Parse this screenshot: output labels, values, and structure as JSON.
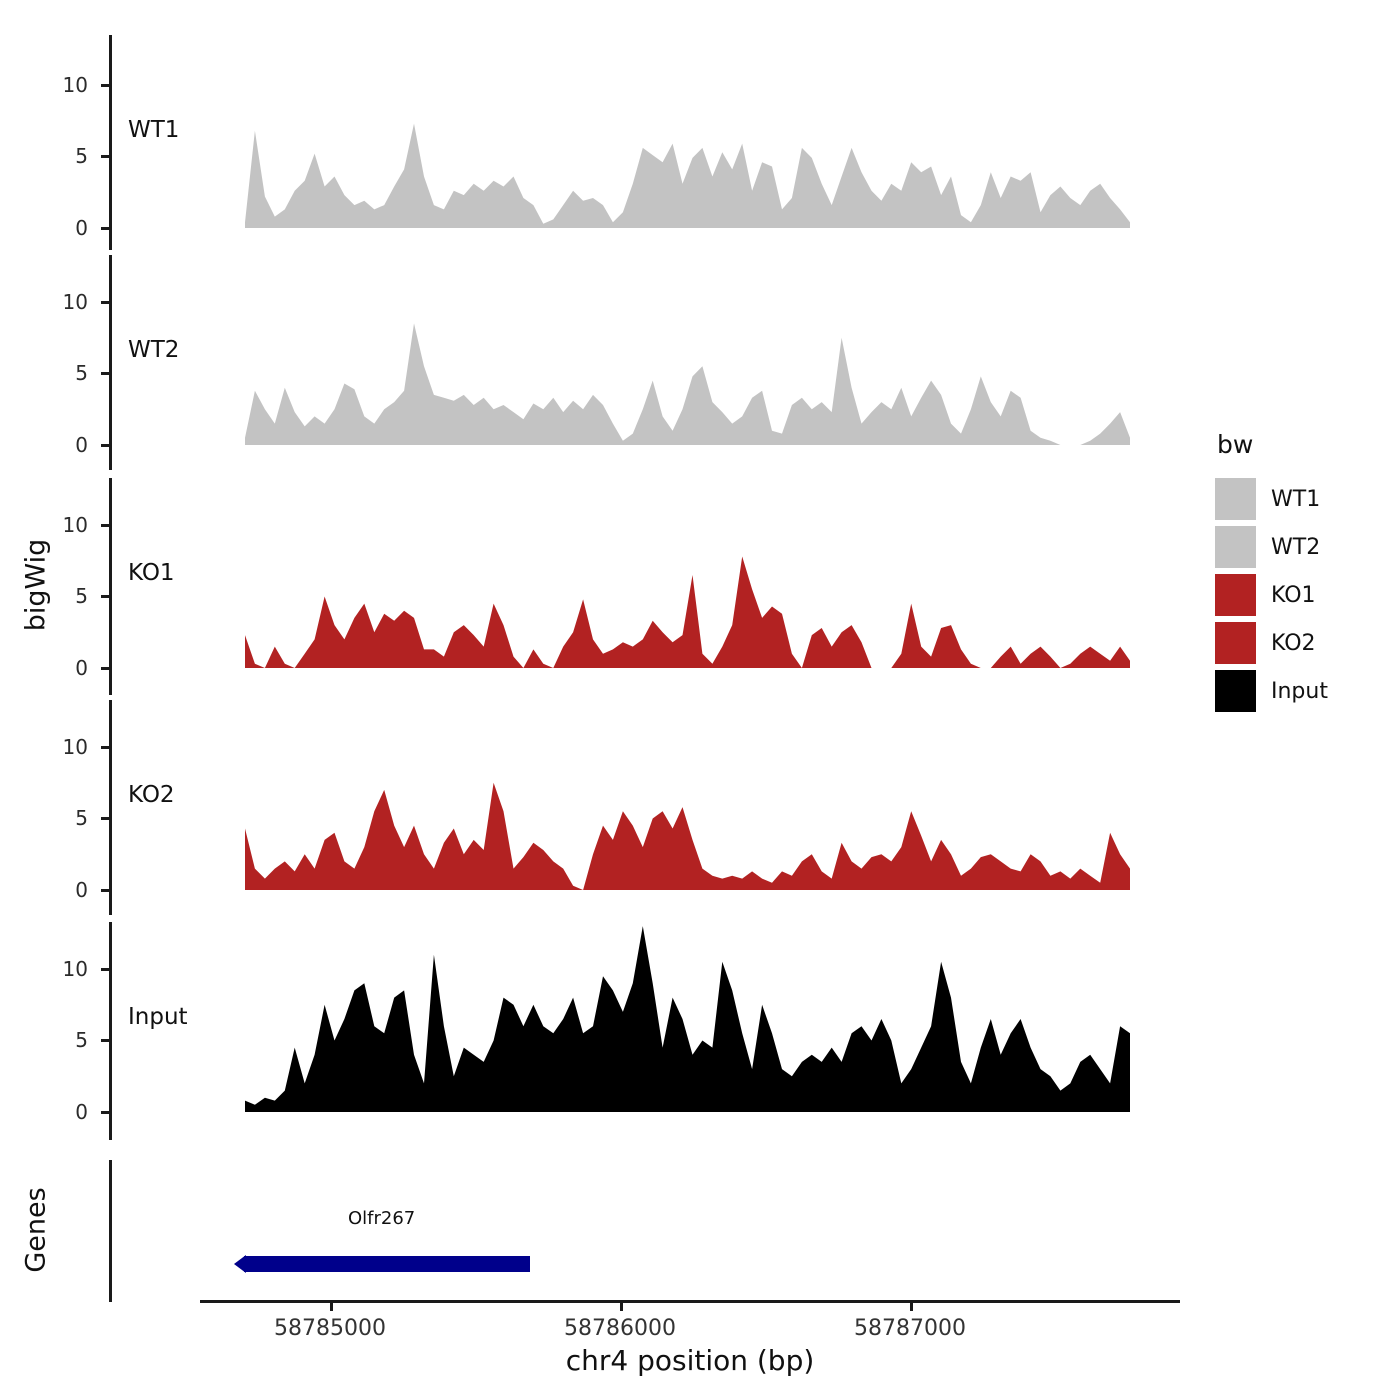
{
  "axis": {
    "y_title": "bigWig",
    "genes_title": "Genes",
    "x_title": "chr4 position (bp)",
    "x_ticks": [
      "58785000",
      "58786000",
      "58787000"
    ],
    "y_ticks": [
      "10",
      "5",
      "0"
    ]
  },
  "legend": {
    "title": "bw",
    "entries": [
      {
        "label": "WT1",
        "color": "#c3c3c3"
      },
      {
        "label": "WT2",
        "color": "#c3c3c3"
      },
      {
        "label": "KO1",
        "color": "#b22222"
      },
      {
        "label": "KO2",
        "color": "#b22222"
      },
      {
        "label": "Input",
        "color": "#000000"
      }
    ]
  },
  "chart_data": {
    "type": "area",
    "title": "",
    "xlabel": "chr4 position (bp)",
    "ylabel": "bigWig",
    "x_range_bp": [
      58784700,
      58787750
    ],
    "x_axis_ticks_bp": [
      58785000,
      58786000,
      58787000
    ],
    "ylim_per_track": [
      0,
      13
    ],
    "y_axis_ticks": [
      0,
      5,
      10
    ],
    "tracks": [
      {
        "name": "WT1",
        "color": "#c3c3c3",
        "values": [
          0.4,
          6.8,
          2.2,
          0.8,
          1.3,
          2.6,
          3.3,
          5.2,
          2.9,
          3.6,
          2.3,
          1.6,
          1.9,
          1.3,
          1.6,
          2.9,
          4.1,
          7.3,
          3.6,
          1.6,
          1.3,
          2.6,
          2.3,
          3.1,
          2.6,
          3.3,
          2.9,
          3.6,
          2.1,
          1.6,
          0.3,
          0.6,
          1.6,
          2.6,
          1.9,
          2.1,
          1.6,
          0.4,
          1.1,
          3.1,
          5.6,
          5.1,
          4.6,
          5.9,
          3.1,
          4.9,
          5.6,
          3.6,
          5.3,
          4.1,
          5.9,
          2.6,
          4.6,
          4.3,
          1.3,
          2.1,
          5.6,
          4.9,
          3.1,
          1.6,
          3.6,
          5.6,
          3.9,
          2.6,
          1.9,
          3.1,
          2.6,
          4.6,
          3.9,
          4.3,
          2.3,
          3.6,
          0.9,
          0.4,
          1.6,
          3.9,
          2.1,
          3.6,
          3.3,
          3.9,
          1.1,
          2.3,
          2.9,
          2.1,
          1.6,
          2.6,
          3.1,
          2.1,
          1.3,
          0.4
        ]
      },
      {
        "name": "WT2",
        "color": "#c3c3c3",
        "values": [
          0.5,
          3.8,
          2.5,
          1.5,
          4.0,
          2.3,
          1.3,
          2.0,
          1.5,
          2.5,
          4.3,
          3.9,
          2.0,
          1.5,
          2.5,
          3.0,
          3.8,
          8.5,
          5.5,
          3.5,
          3.3,
          3.1,
          3.5,
          2.8,
          3.3,
          2.5,
          2.8,
          2.3,
          1.8,
          2.9,
          2.5,
          3.3,
          2.3,
          3.1,
          2.5,
          3.5,
          2.8,
          1.5,
          0.3,
          0.8,
          2.5,
          4.5,
          2.0,
          1.0,
          2.5,
          4.8,
          5.5,
          3.0,
          2.3,
          1.5,
          2.0,
          3.3,
          3.8,
          1.0,
          0.8,
          2.8,
          3.3,
          2.5,
          3.0,
          2.3,
          7.5,
          4.0,
          1.5,
          2.3,
          3.0,
          2.5,
          4.0,
          2.0,
          3.3,
          4.5,
          3.5,
          1.5,
          0.8,
          2.5,
          4.8,
          3.0,
          2.0,
          3.8,
          3.3,
          1.0,
          0.5,
          0.3,
          0.0,
          0.0,
          0.0,
          0.3,
          0.8,
          1.5,
          2.3,
          0.5
        ]
      },
      {
        "name": "KO1",
        "color": "#b22222",
        "values": [
          2.3,
          0.3,
          0.0,
          1.5,
          0.3,
          0.0,
          1.0,
          2.0,
          5.0,
          3.0,
          2.0,
          3.5,
          4.5,
          2.5,
          3.8,
          3.3,
          4.0,
          3.5,
          1.3,
          1.3,
          0.8,
          2.5,
          3.0,
          2.3,
          1.5,
          4.5,
          3.0,
          0.8,
          0.0,
          1.3,
          0.3,
          0.0,
          1.5,
          2.5,
          4.8,
          2.0,
          1.0,
          1.3,
          1.8,
          1.5,
          2.0,
          3.3,
          2.5,
          1.8,
          2.3,
          6.5,
          1.0,
          0.3,
          1.5,
          3.0,
          7.8,
          5.5,
          3.5,
          4.3,
          3.8,
          1.0,
          0.0,
          2.3,
          2.8,
          1.5,
          2.5,
          3.0,
          1.8,
          0.0,
          0.0,
          0.0,
          1.0,
          4.5,
          1.5,
          0.8,
          2.8,
          3.0,
          1.3,
          0.3,
          0.0,
          0.0,
          0.8,
          1.5,
          0.3,
          1.0,
          1.5,
          0.8,
          0.0,
          0.3,
          1.0,
          1.5,
          1.0,
          0.5,
          1.5,
          0.5
        ]
      },
      {
        "name": "KO2",
        "color": "#b22222",
        "values": [
          4.3,
          1.5,
          0.8,
          1.5,
          2.0,
          1.3,
          2.5,
          1.5,
          3.5,
          4.0,
          2.0,
          1.5,
          3.0,
          5.5,
          7.0,
          4.5,
          3.0,
          4.5,
          2.5,
          1.5,
          3.3,
          4.3,
          2.5,
          3.5,
          2.8,
          7.5,
          5.5,
          1.5,
          2.3,
          3.3,
          2.8,
          2.0,
          1.5,
          0.3,
          0.0,
          2.5,
          4.5,
          3.5,
          5.5,
          4.5,
          3.0,
          5.0,
          5.5,
          4.3,
          5.8,
          3.5,
          1.5,
          1.0,
          0.8,
          1.0,
          0.8,
          1.3,
          0.8,
          0.5,
          1.3,
          1.0,
          2.0,
          2.5,
          1.3,
          0.8,
          3.3,
          2.0,
          1.5,
          2.3,
          2.5,
          2.0,
          3.0,
          5.5,
          3.8,
          2.0,
          3.5,
          2.5,
          1.0,
          1.5,
          2.3,
          2.5,
          2.0,
          1.5,
          1.3,
          2.5,
          2.0,
          1.0,
          1.3,
          0.8,
          1.5,
          1.0,
          0.5,
          4.0,
          2.5,
          1.5
        ]
      },
      {
        "name": "Input",
        "color": "#000000",
        "values": [
          0.8,
          0.5,
          1.0,
          0.8,
          1.5,
          4.5,
          2.0,
          4.0,
          7.5,
          5.0,
          6.5,
          8.5,
          9.0,
          6.0,
          5.5,
          8.0,
          8.5,
          4.0,
          2.0,
          11.0,
          6.0,
          2.5,
          4.5,
          4.0,
          3.5,
          5.0,
          8.0,
          7.5,
          6.0,
          7.5,
          6.0,
          5.5,
          6.5,
          8.0,
          5.5,
          6.0,
          9.5,
          8.5,
          7.0,
          9.0,
          13.0,
          9.0,
          4.5,
          8.0,
          6.5,
          4.0,
          5.0,
          4.5,
          10.5,
          8.5,
          5.5,
          3.0,
          7.5,
          5.5,
          3.0,
          2.5,
          3.5,
          4.0,
          3.5,
          4.5,
          3.5,
          5.5,
          6.0,
          5.0,
          6.5,
          5.0,
          2.0,
          3.0,
          4.5,
          6.0,
          10.5,
          8.0,
          3.5,
          2.0,
          4.5,
          6.5,
          4.0,
          5.5,
          6.5,
          4.5,
          3.0,
          2.5,
          1.5,
          2.0,
          3.5,
          4.0,
          3.0,
          2.0,
          6.0,
          5.5
        ]
      }
    ],
    "gene_annotation": {
      "name": "Olfr267",
      "chrom": "chr4",
      "span_bp": [
        58784690,
        58785690
      ],
      "strand": "-",
      "color": "#00008b"
    }
  }
}
